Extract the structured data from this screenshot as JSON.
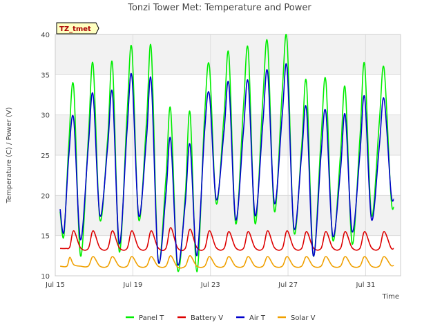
{
  "chart_data": {
    "type": "line",
    "title": "Tonzi Tower Met: Temperature and Power",
    "xlabel": "Time",
    "ylabel": "Temperature (C) / Power (V)",
    "ylim": [
      10,
      40
    ],
    "xlim": [
      15,
      32.8
    ],
    "grid": true,
    "yticks": [
      10,
      15,
      20,
      25,
      30,
      35,
      40
    ],
    "xticks": [
      {
        "value": 15,
        "label": "Jul 15"
      },
      {
        "value": 19,
        "label": "Jul 19"
      },
      {
        "value": 23,
        "label": "Jul 23"
      },
      {
        "value": 27,
        "label": "Jul 27"
      },
      {
        "value": 31,
        "label": "Jul 31"
      }
    ],
    "annotation": "TZ_tmet",
    "legend_position": "bottom",
    "series": [
      {
        "name": "Panel T",
        "color": "#00ee00",
        "x": [
          15.25,
          15.45,
          15.7,
          15.95,
          16.3,
          16.7,
          16.95,
          17.3,
          17.7,
          17.95,
          18.3,
          18.7,
          18.95,
          19.3,
          19.7,
          19.95,
          20.3,
          20.7,
          20.95,
          21.3,
          21.7,
          21.95,
          22.3,
          22.7,
          22.95,
          23.3,
          23.7,
          23.95,
          24.3,
          24.7,
          24.95,
          25.3,
          25.7,
          25.95,
          26.3,
          26.7,
          26.95,
          27.3,
          27.7,
          27.95,
          28.3,
          28.7,
          28.95,
          29.3,
          29.7,
          29.95,
          30.3,
          30.7,
          30.95,
          31.3,
          31.7,
          31.95,
          32.3,
          32.45
        ],
        "y": [
          18.0,
          15.0,
          26.5,
          33.5,
          12.5,
          27.0,
          36.3,
          17.0,
          27.0,
          36.3,
          13.0,
          30.0,
          38.2,
          17.0,
          29.0,
          38.2,
          12.0,
          22.0,
          30.7,
          10.8,
          20.0,
          30.3,
          10.5,
          30.0,
          36.0,
          19.0,
          30.0,
          37.5,
          16.5,
          31.0,
          38.0,
          16.5,
          32.0,
          38.8,
          18.0,
          33.0,
          39.2,
          15.5,
          26.0,
          34.0,
          12.5,
          27.0,
          34.2,
          14.5,
          25.0,
          33.3,
          14.0,
          27.0,
          36.3,
          17.5,
          29.0,
          35.8,
          20.0,
          18.5
        ]
      },
      {
        "name": "Battery V",
        "color": "#dd0000",
        "x": [
          15.25,
          15.55,
          15.75,
          15.95,
          16.3,
          16.7,
          16.95,
          17.3,
          17.7,
          17.95,
          18.3,
          18.7,
          18.95,
          19.3,
          19.7,
          19.95,
          20.3,
          20.7,
          20.95,
          21.3,
          21.7,
          21.95,
          22.3,
          22.7,
          22.95,
          23.3,
          23.7,
          23.95,
          24.3,
          24.7,
          24.95,
          25.3,
          25.7,
          25.95,
          26.3,
          26.7,
          26.95,
          27.3,
          27.7,
          27.95,
          28.3,
          28.7,
          28.95,
          29.3,
          29.7,
          29.95,
          30.3,
          30.7,
          30.95,
          31.3,
          31.7,
          31.95,
          32.3,
          32.45
        ],
        "y": [
          13.4,
          13.4,
          13.6,
          15.6,
          13.5,
          13.4,
          15.6,
          13.5,
          13.4,
          15.6,
          13.5,
          13.4,
          15.6,
          13.5,
          13.4,
          15.6,
          13.5,
          13.4,
          16.0,
          13.5,
          13.4,
          15.8,
          13.5,
          13.4,
          15.6,
          13.5,
          13.4,
          15.5,
          13.5,
          13.4,
          15.5,
          13.5,
          13.4,
          15.6,
          13.5,
          13.4,
          15.6,
          13.5,
          13.4,
          15.5,
          13.5,
          13.4,
          15.5,
          13.5,
          13.4,
          15.5,
          13.5,
          13.4,
          15.5,
          13.5,
          13.4,
          15.5,
          13.5,
          13.4
        ]
      },
      {
        "name": "Air T",
        "color": "#0000cc",
        "x": [
          15.25,
          15.45,
          15.7,
          15.95,
          16.3,
          16.7,
          16.95,
          17.3,
          17.7,
          17.95,
          18.3,
          18.7,
          18.95,
          19.3,
          19.7,
          19.95,
          20.3,
          20.7,
          20.95,
          21.3,
          21.7,
          21.95,
          22.3,
          22.7,
          22.95,
          23.3,
          23.7,
          23.95,
          24.3,
          24.7,
          24.95,
          25.3,
          25.7,
          25.95,
          26.3,
          26.7,
          26.95,
          27.3,
          27.7,
          27.95,
          28.3,
          28.7,
          28.95,
          29.3,
          29.7,
          29.95,
          30.3,
          30.7,
          30.95,
          31.3,
          31.7,
          31.95,
          32.3,
          32.45
        ],
        "y": [
          18.3,
          15.5,
          25.0,
          29.5,
          14.5,
          26.0,
          32.5,
          17.5,
          26.0,
          32.7,
          14.0,
          28.0,
          34.8,
          17.5,
          27.0,
          34.2,
          12.0,
          20.0,
          27.0,
          11.5,
          19.0,
          26.3,
          12.5,
          28.0,
          32.5,
          19.5,
          28.0,
          33.8,
          17.0,
          28.0,
          34.0,
          17.5,
          29.0,
          35.3,
          19.0,
          30.0,
          35.8,
          16.0,
          25.0,
          30.7,
          12.5,
          25.0,
          30.3,
          15.0,
          23.0,
          30.0,
          15.5,
          25.0,
          32.2,
          17.0,
          26.0,
          32.0,
          20.5,
          19.5
        ]
      },
      {
        "name": "Solar V",
        "color": "#f0a000",
        "x": [
          15.25,
          15.6,
          15.75,
          15.95,
          16.3,
          16.7,
          16.95,
          17.3,
          17.7,
          17.95,
          18.3,
          18.7,
          18.95,
          19.3,
          19.7,
          19.95,
          20.3,
          20.7,
          20.95,
          21.3,
          21.7,
          21.95,
          22.3,
          22.7,
          22.95,
          23.3,
          23.7,
          23.95,
          24.3,
          24.7,
          24.95,
          25.3,
          25.7,
          25.95,
          26.3,
          26.7,
          26.95,
          27.3,
          27.7,
          27.95,
          28.3,
          28.7,
          28.95,
          29.3,
          29.7,
          29.95,
          30.3,
          30.7,
          30.95,
          31.3,
          31.7,
          31.95,
          32.3,
          32.45
        ],
        "y": [
          11.2,
          11.2,
          12.3,
          11.4,
          11.2,
          11.2,
          12.4,
          11.2,
          11.2,
          12.4,
          11.2,
          11.2,
          12.4,
          11.2,
          11.2,
          12.4,
          11.2,
          11.2,
          12.5,
          11.1,
          11.2,
          12.5,
          11.2,
          11.2,
          12.4,
          11.2,
          11.2,
          12.4,
          11.2,
          11.2,
          12.4,
          11.2,
          11.2,
          12.4,
          11.2,
          11.2,
          12.4,
          11.2,
          11.2,
          12.4,
          11.2,
          11.2,
          12.4,
          11.2,
          11.2,
          12.4,
          11.2,
          11.2,
          12.4,
          11.2,
          11.2,
          12.4,
          11.3,
          11.3
        ]
      }
    ]
  }
}
